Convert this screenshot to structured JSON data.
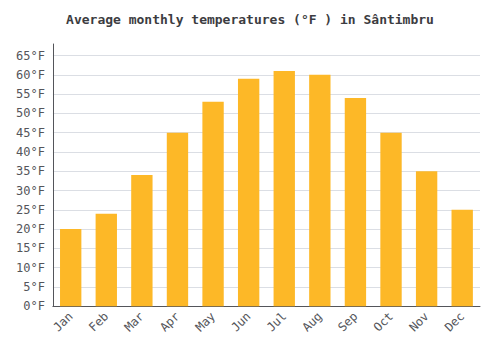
{
  "chart_data": {
    "type": "bar",
    "title": "Average monthly temperatures (°F ) in Sântimbru",
    "categories": [
      "Jan",
      "Feb",
      "Mar",
      "Apr",
      "May",
      "Jun",
      "Jul",
      "Aug",
      "Sep",
      "Oct",
      "Nov",
      "Dec"
    ],
    "values": [
      20,
      24,
      34,
      45,
      53,
      59,
      61,
      60,
      54,
      45,
      35,
      25
    ],
    "color": "#FDB827",
    "ylim": [
      0,
      68
    ],
    "yticks": [
      {
        "value": 0,
        "label": "0°F"
      },
      {
        "value": 5,
        "label": "5°F"
      },
      {
        "value": 10,
        "label": "10°F"
      },
      {
        "value": 15,
        "label": "15°F"
      },
      {
        "value": 20,
        "label": "20°F"
      },
      {
        "value": 25,
        "label": "25°F"
      },
      {
        "value": 30,
        "label": "30°F"
      },
      {
        "value": 35,
        "label": "35°F"
      },
      {
        "value": 40,
        "label": "40°F"
      },
      {
        "value": 45,
        "label": "45°F"
      },
      {
        "value": 50,
        "label": "50°F"
      },
      {
        "value": 55,
        "label": "55°F"
      },
      {
        "value": 60,
        "label": "60°F"
      },
      {
        "value": 65,
        "label": "65°F"
      }
    ],
    "grid": true
  }
}
